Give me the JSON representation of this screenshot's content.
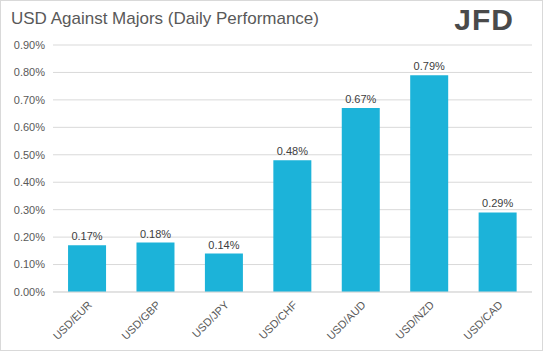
{
  "chart_data": {
    "type": "bar",
    "title": "USD Against Majors (Daily Performance)",
    "logo": "JFD",
    "categories": [
      "USD/EUR",
      "USD/GBP",
      "USD/JPY",
      "USD/CHF",
      "USD/AUD",
      "USD/NZD",
      "USD/CAD"
    ],
    "values": [
      0.17,
      0.18,
      0.14,
      0.48,
      0.67,
      0.79,
      0.29
    ],
    "value_labels": [
      "0.17%",
      "0.18%",
      "0.14%",
      "0.48%",
      "0.67%",
      "0.79%",
      "0.29%"
    ],
    "color": "#1cb3d9",
    "ylim": [
      0,
      0.9
    ],
    "yticks": [
      {
        "value": 0,
        "label": "0.00%"
      },
      {
        "value": 0.1,
        "label": "0.10%"
      },
      {
        "value": 0.2,
        "label": "0.20%"
      },
      {
        "value": 0.3,
        "label": "0.30%"
      },
      {
        "value": 0.4,
        "label": "0.40%"
      },
      {
        "value": 0.5,
        "label": "0.50%"
      },
      {
        "value": 0.6,
        "label": "0.60%"
      },
      {
        "value": 0.7,
        "label": "0.70%"
      },
      {
        "value": 0.8,
        "label": "0.80%"
      },
      {
        "value": 0.9,
        "label": "0.90%"
      }
    ],
    "grid": true,
    "data_labels": true
  }
}
